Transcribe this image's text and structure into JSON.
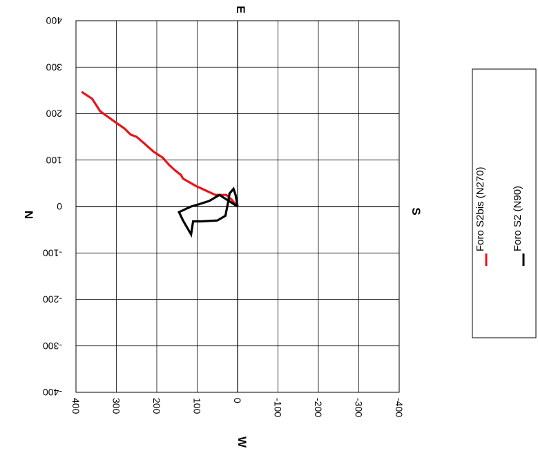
{
  "chart_data": {
    "type": "line",
    "orientation": "rotated 90 degrees",
    "xlabel_bottom": "W",
    "xlabel_top": "E",
    "ylabel_left": "N",
    "ylabel_right": "S",
    "xlim": [
      -400,
      400
    ],
    "ylim": [
      -400,
      400
    ],
    "x_ticks": [
      "400",
      "300",
      "200",
      "100",
      "0",
      "-100",
      "-200",
      "-300",
      "-400"
    ],
    "y_ticks": [
      "400",
      "300",
      "200",
      "100",
      "0",
      "-100",
      "-200",
      "-300",
      "-400"
    ],
    "grid": true,
    "legend_position": "right",
    "series": [
      {
        "name": "Foro S2bis (N270)",
        "color": "#e8141b",
        "points": [
          [
            386,
            247
          ],
          [
            360,
            232
          ],
          [
            340,
            205
          ],
          [
            300,
            180
          ],
          [
            280,
            168
          ],
          [
            265,
            155
          ],
          [
            250,
            150
          ],
          [
            230,
            135
          ],
          [
            208,
            118
          ],
          [
            185,
            105
          ],
          [
            170,
            90
          ],
          [
            155,
            78
          ],
          [
            140,
            68
          ],
          [
            135,
            60
          ],
          [
            105,
            45
          ],
          [
            80,
            35
          ],
          [
            55,
            25
          ],
          [
            40,
            25
          ],
          [
            28,
            25
          ],
          [
            15,
            15
          ],
          [
            0,
            0
          ]
        ]
      },
      {
        "name": "Foro S2 (N90)",
        "color": "#000000",
        "points": [
          [
            0,
            0
          ],
          [
            5,
            25
          ],
          [
            10,
            38
          ],
          [
            20,
            28
          ],
          [
            22,
            15
          ],
          [
            30,
            -20
          ],
          [
            50,
            -30
          ],
          [
            90,
            -32
          ],
          [
            110,
            -32
          ],
          [
            115,
            -60
          ],
          [
            135,
            -30
          ],
          [
            145,
            -12
          ],
          [
            115,
            0
          ],
          [
            95,
            5
          ],
          [
            70,
            12
          ],
          [
            45,
            25
          ],
          [
            0,
            0
          ]
        ]
      }
    ]
  }
}
